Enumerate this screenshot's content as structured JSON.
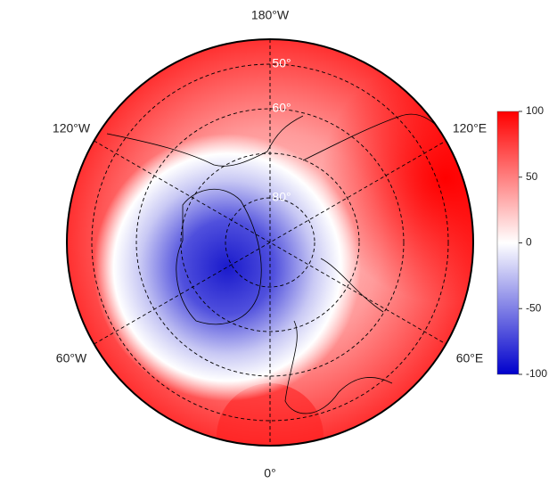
{
  "map": {
    "longitude_labels": [
      "180°W",
      "120°W",
      "120°E",
      "60°W",
      "60°E",
      "0°"
    ],
    "latitude_labels": [
      "50°",
      "60°",
      "80°"
    ],
    "colorbar": {
      "lim": [
        -100,
        100
      ],
      "ticks": [
        100,
        50,
        0,
        -50,
        -100
      ],
      "colors": [
        "#0000cc",
        "#ffffff",
        "#ff0000"
      ]
    }
  }
}
